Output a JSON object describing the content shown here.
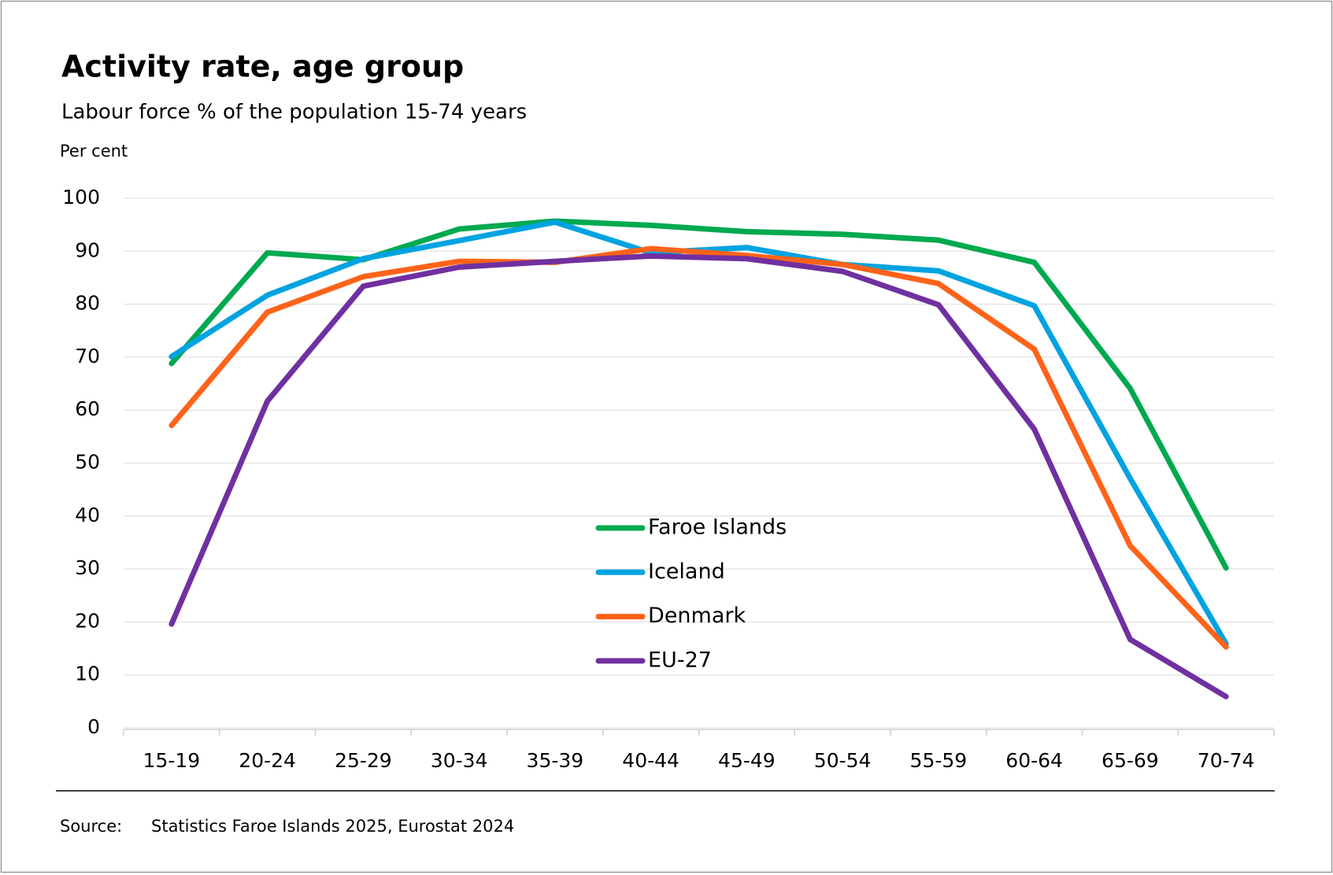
{
  "chart_data": {
    "type": "line",
    "title": "Activity rate, age group",
    "subtitle": "Labour force % of the population 15-74 years",
    "y_label": "Per cent",
    "source_label": "Source:",
    "source": "Statistics Faroe Islands 2025, Eurostat 2024",
    "categories": [
      "15-19",
      "20-24",
      "25-29",
      "30-34",
      "35-39",
      "40-44",
      "45-49",
      "50-54",
      "55-59",
      "60-64",
      "65-69",
      "70-74"
    ],
    "series": [
      {
        "name": "Faroe Islands",
        "color": "#00a94f",
        "values": [
          68.8,
          89.7,
          88.4,
          94.2,
          95.7,
          94.9,
          93.7,
          93.2,
          92.1,
          87.9,
          64.1,
          30.2
        ]
      },
      {
        "name": "Iceland",
        "color": "#00a3e0",
        "values": [
          70.1,
          81.7,
          88.6,
          92.0,
          95.5,
          89.7,
          90.7,
          87.5,
          86.3,
          79.7,
          47.1,
          15.9
        ]
      },
      {
        "name": "Denmark",
        "color": "#ff6319",
        "values": [
          57.1,
          78.5,
          85.2,
          88.1,
          87.9,
          90.5,
          89.2,
          87.5,
          83.9,
          71.5,
          34.4,
          15.3
        ]
      },
      {
        "name": "EU-27",
        "color": "#7030a0",
        "values": [
          19.6,
          61.7,
          83.4,
          87.0,
          88.1,
          89.1,
          88.6,
          86.2,
          79.9,
          56.4,
          16.7,
          5.9
        ]
      }
    ],
    "ylim": [
      0,
      100
    ],
    "yticks": [
      0,
      10,
      20,
      30,
      40,
      50,
      60,
      70,
      80,
      90,
      100
    ],
    "grid": true
  }
}
